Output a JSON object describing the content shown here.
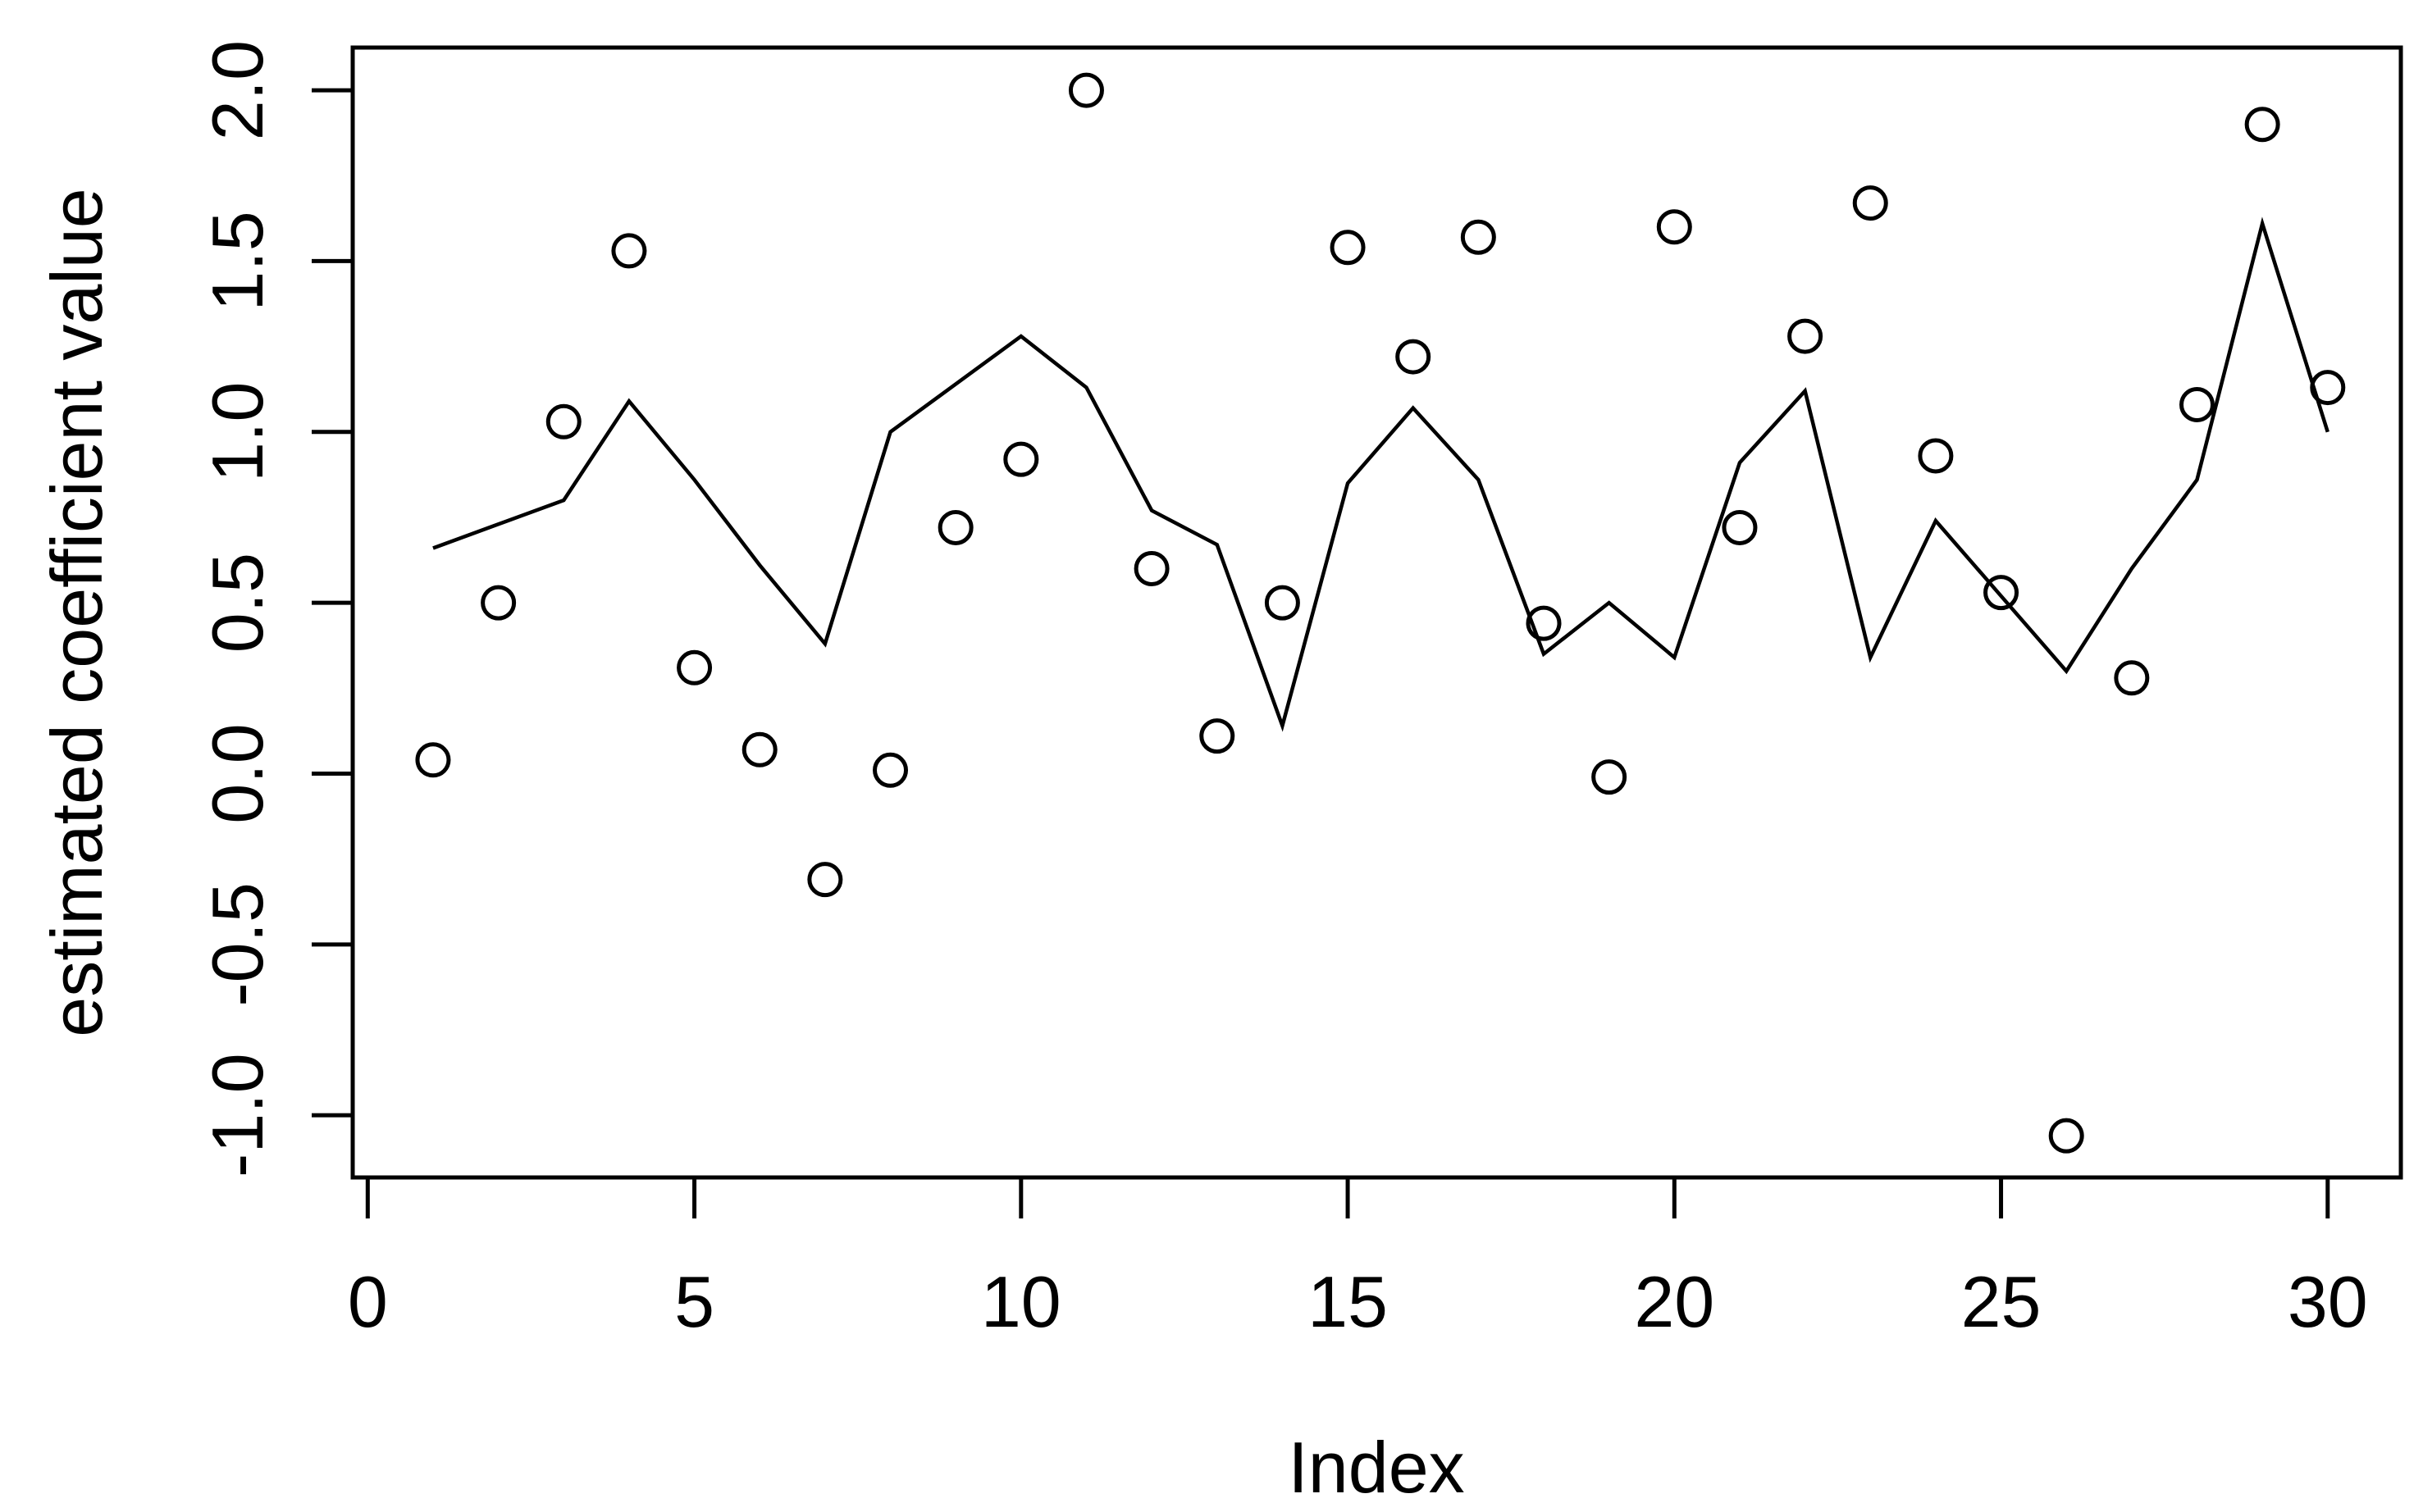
{
  "chart_data": {
    "type": "line",
    "subtype": "scatter-with-line-overlay",
    "title": "",
    "xlabel": "Index",
    "ylabel": "estimated coefficient value",
    "x": [
      1,
      2,
      3,
      4,
      5,
      6,
      7,
      8,
      9,
      10,
      11,
      12,
      13,
      14,
      15,
      16,
      17,
      18,
      19,
      20,
      21,
      22,
      23,
      24,
      25,
      26,
      27,
      28,
      29,
      30
    ],
    "series": [
      {
        "name": "points",
        "type": "scatter",
        "marker": "open-circle",
        "color": "#000000",
        "values": [
          0.04,
          0.5,
          1.03,
          1.53,
          0.31,
          0.07,
          -0.31,
          0.01,
          0.72,
          0.92,
          2.0,
          0.6,
          0.11,
          0.5,
          1.54,
          1.22,
          1.57,
          0.44,
          -0.01,
          1.6,
          0.72,
          1.28,
          1.67,
          0.93,
          0.53,
          -1.06,
          0.28,
          1.08,
          1.9,
          1.13
        ]
      },
      {
        "name": "line",
        "type": "line",
        "marker": "none",
        "color": "#000000",
        "values": [
          0.66,
          0.73,
          0.8,
          1.09,
          0.86,
          0.61,
          0.38,
          1.0,
          1.14,
          1.28,
          1.13,
          0.77,
          0.67,
          0.14,
          0.85,
          1.07,
          0.86,
          0.35,
          0.5,
          0.34,
          0.91,
          1.12,
          0.34,
          0.74,
          0.52,
          0.3,
          0.6,
          0.86,
          1.61,
          1.0
        ]
      }
    ],
    "x_ticks": [
      0,
      5,
      10,
      15,
      20,
      25,
      30
    ],
    "x_tick_labels": [
      "0",
      "5",
      "10",
      "15",
      "20",
      "25",
      "30"
    ],
    "y_ticks": [
      -1.0,
      -0.5,
      0.0,
      0.5,
      1.0,
      1.5,
      2.0
    ],
    "y_tick_labels": [
      "-1.0",
      "-0.5",
      "0.0",
      "0.5",
      "1.0",
      "1.5",
      "2.0"
    ],
    "xlim": [
      -0.23,
      31.12
    ],
    "ylim": [
      -1.182,
      2.125
    ],
    "grid": false,
    "legend": null,
    "y_tick_label_rotation": 90,
    "colors": {
      "foreground": "#000000",
      "background": "#ffffff"
    }
  }
}
